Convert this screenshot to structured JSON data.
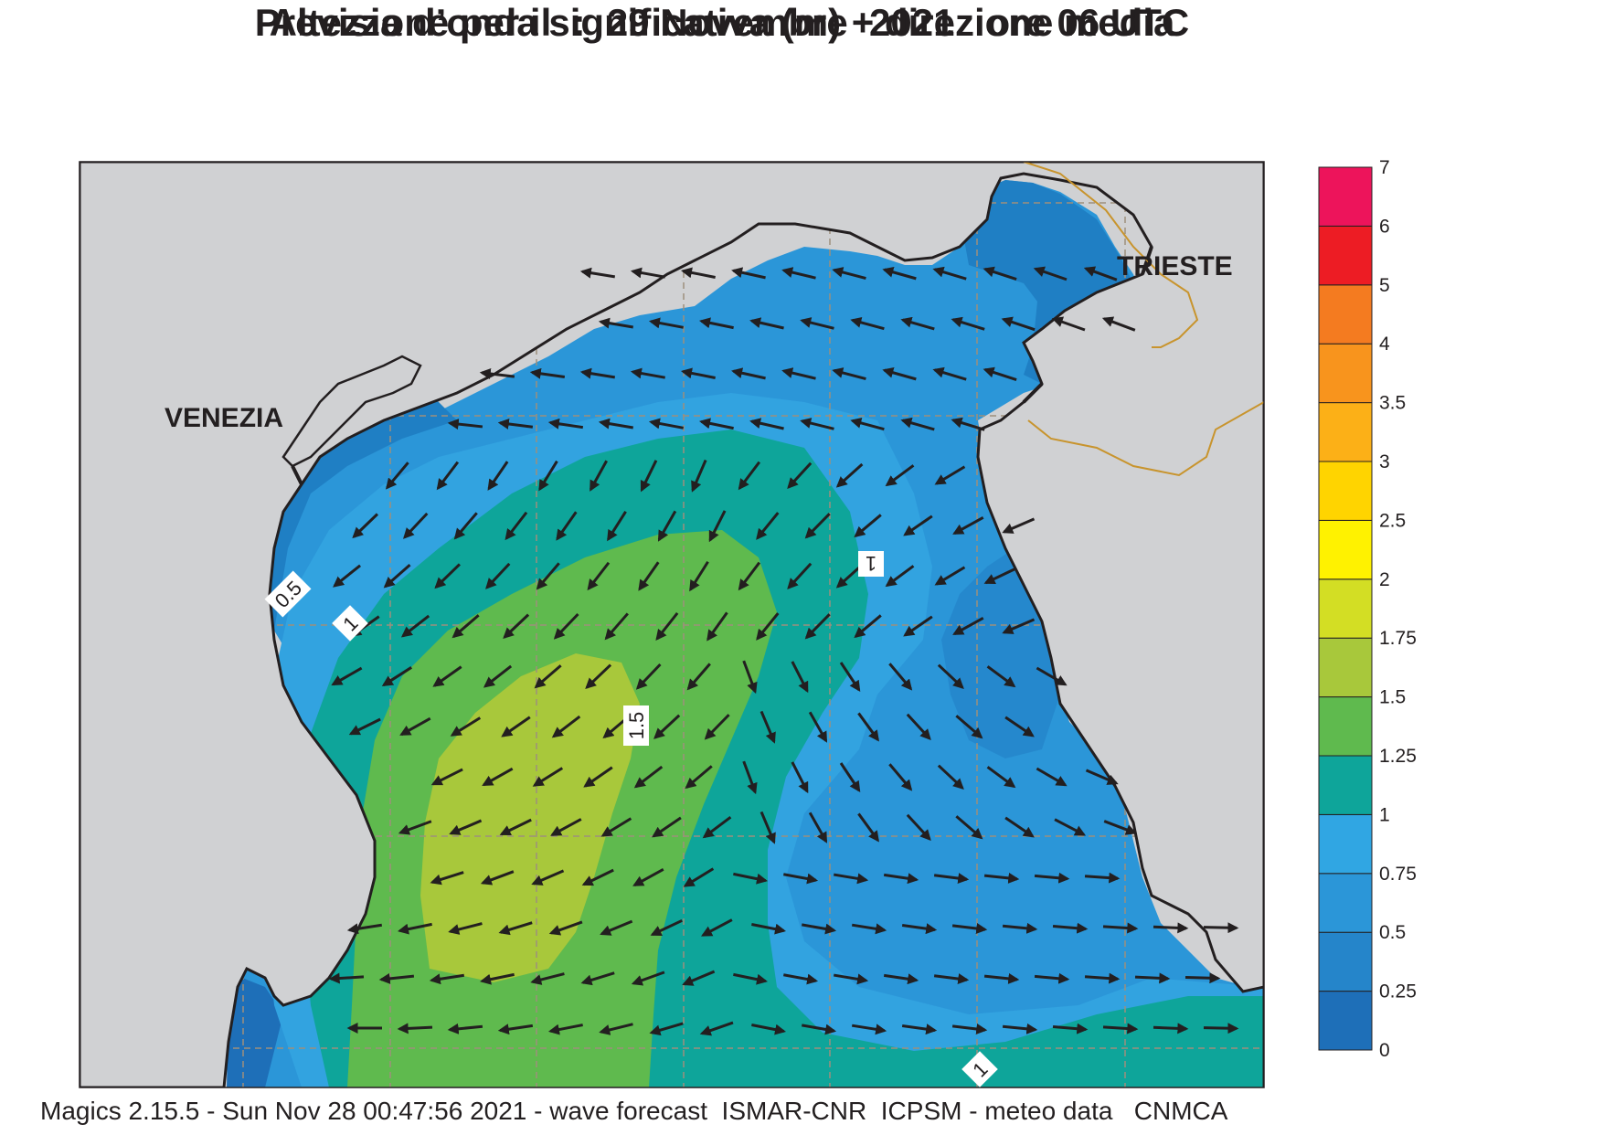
{
  "title": {
    "line1": "Previsione per il  :  29 Novembre  2021   ore 06 UTC",
    "line2": "Altezza d’onda significativa (m) + direzione media"
  },
  "labels": {
    "city_1": "VENEZIA",
    "city_2": "TRIESTE"
  },
  "contour_labels": [
    "0.5",
    "1",
    "1",
    "1.5",
    "1"
  ],
  "colorbar": {
    "levels": [
      "0",
      "0.25",
      "0.5",
      "0.75",
      "1",
      "1.25",
      "1.5",
      "1.75",
      "2",
      "2.5",
      "3",
      "3.5",
      "4",
      "5",
      "6",
      "7"
    ],
    "colors": [
      "#1e6fb8",
      "#2585ca",
      "#2b96d8",
      "#30a6e3",
      "#0ea59a",
      "#5fba4e",
      "#a8c83b",
      "#d3de24",
      "#fff200",
      "#ffd400",
      "#fcb017",
      "#f8941d",
      "#f47b20",
      "#ed1c24",
      "#ed145b"
    ]
  },
  "map_colors": {
    "land": "#d0d1d3",
    "coast": "#231f20",
    "border": "#c8942d",
    "grid": "#9d8f7c",
    "arrow": "#231f20"
  },
  "footer": "Magics 2.15.5 - Sun Nov 28 00:47:56 2021 - wave forecast  ISMAR-CNR  ICPSM - meteo data   CNMCA"
}
